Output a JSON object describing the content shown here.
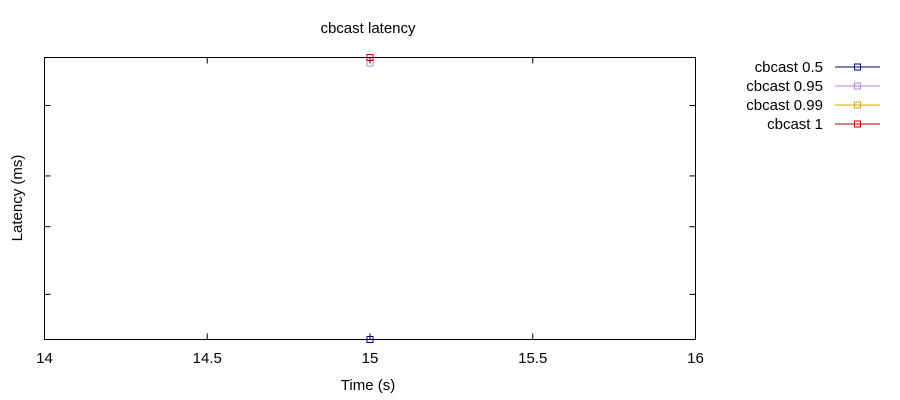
{
  "chart_data": {
    "type": "line",
    "title": "cbcast latency",
    "xlabel": "Time (s)",
    "ylabel": "Latency (ms)",
    "xlim": [
      14,
      16
    ],
    "x_ticks": [
      "14",
      "14.5",
      "15",
      "15.5",
      "16"
    ],
    "y_tick_labels_shown": false,
    "grid": false,
    "legend_position": "outside-right-top",
    "series": [
      {
        "name": "cbcast 0.5",
        "color": "#00007f",
        "points": [
          [
            15,
            0.0
          ]
        ]
      },
      {
        "name": "cbcast 0.95",
        "color": "#bf7fdf",
        "points": [
          [
            15,
            0.98
          ]
        ]
      },
      {
        "name": "cbcast 0.99",
        "color": "#dfa000",
        "points": [
          [
            15,
            1.0
          ]
        ]
      },
      {
        "name": "cbcast 1",
        "color": "#bf0000",
        "points": [
          [
            15,
            1.0
          ]
        ]
      }
    ]
  }
}
